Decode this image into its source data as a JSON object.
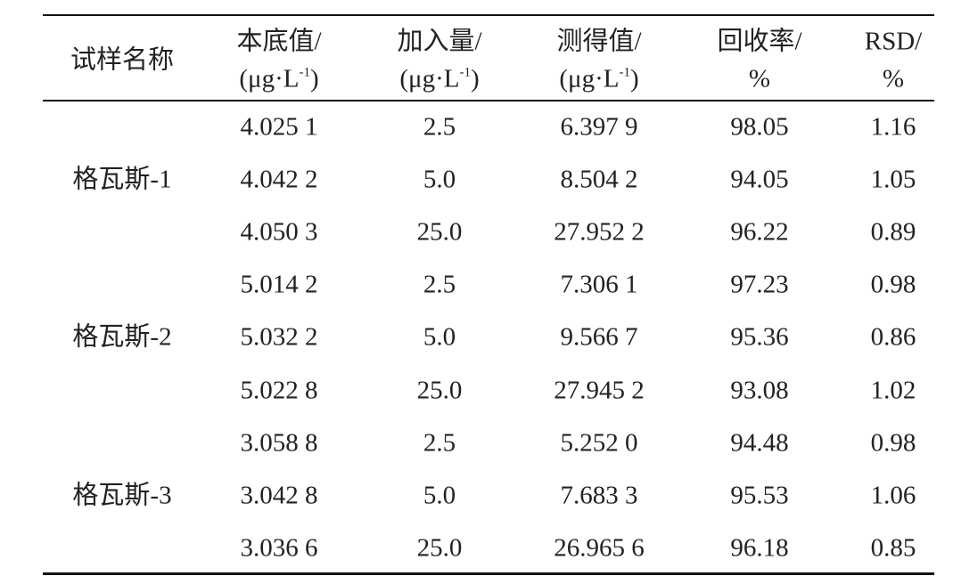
{
  "table": {
    "header": [
      {
        "line1": "试样名称"
      },
      {
        "line1": "本底值/",
        "line2": {
          "before": "(μg·L",
          "sup": "-1",
          "after": ")"
        }
      },
      {
        "line1": "加入量/",
        "line2": {
          "before": "(μg·L",
          "sup": "-1",
          "after": ")"
        }
      },
      {
        "line1": "测得值/",
        "line2": {
          "before": "(μg·L",
          "sup": "-1",
          "after": ")"
        }
      },
      {
        "line1": "回收率/",
        "line2": {
          "before": "%"
        }
      },
      {
        "line1": "RSD/",
        "line2": {
          "before": "%"
        }
      }
    ],
    "groups": [
      {
        "name": "格瓦斯-1",
        "rows": [
          [
            "4.025 1",
            "2.5",
            "6.397 9",
            "98.05",
            "1.16"
          ],
          [
            "4.042 2",
            "5.0",
            "8.504 2",
            "94.05",
            "1.05"
          ],
          [
            "4.050 3",
            "25.0",
            "27.952 2",
            "96.22",
            "0.89"
          ]
        ]
      },
      {
        "name": "格瓦斯-2",
        "rows": [
          [
            "5.014 2",
            "2.5",
            "7.306 1",
            "97.23",
            "0.98"
          ],
          [
            "5.032 2",
            "5.0",
            "9.566 7",
            "95.36",
            "0.86"
          ],
          [
            "5.022 8",
            "25.0",
            "27.945 2",
            "93.08",
            "1.02"
          ]
        ]
      },
      {
        "name": "格瓦斯-3",
        "rows": [
          [
            "3.058 8",
            "2.5",
            "5.252 0",
            "94.48",
            "0.98"
          ],
          [
            "3.042 8",
            "5.0",
            "7.683 3",
            "95.53",
            "1.06"
          ],
          [
            "3.036 6",
            "25.0",
            "26.965 6",
            "96.18",
            "0.85"
          ]
        ]
      }
    ]
  }
}
